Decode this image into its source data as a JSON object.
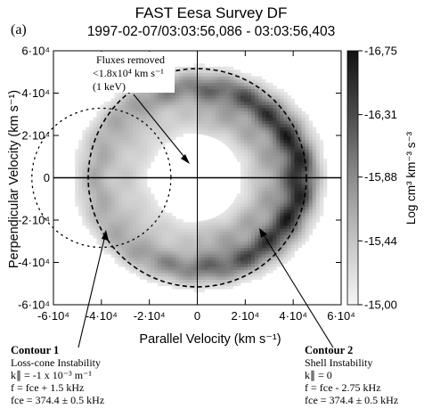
{
  "panel_label": "(a)",
  "chart_data": {
    "type": "heatmap",
    "title": "FAST  Eesa Survey DF",
    "subtitle": "1997-02-07/03:03:56,086 - 03:03:56,403",
    "xlabel": "Parallel Velocity (km s⁻¹)",
    "ylabel": "Perpendicular Velocity (km s⁻¹)",
    "xlim": [
      -60000,
      60000
    ],
    "ylim": [
      -60000,
      60000
    ],
    "x_ticks": [
      {
        "value": -60000,
        "label": "-6·10⁴"
      },
      {
        "value": -40000,
        "label": "-4·10⁴"
      },
      {
        "value": -20000,
        "label": "-2·10⁴"
      },
      {
        "value": 0,
        "label": "0"
      },
      {
        "value": 20000,
        "label": "2·10⁴"
      },
      {
        "value": 40000,
        "label": "4·10⁴"
      },
      {
        "value": 60000,
        "label": "6·10⁴"
      }
    ],
    "y_ticks": [
      {
        "value": 60000,
        "label": "6·10⁴"
      },
      {
        "value": 40000,
        "label": "4·10⁴"
      },
      {
        "value": 20000,
        "label": "2·10⁴"
      },
      {
        "value": 0,
        "label": "0"
      },
      {
        "value": -20000,
        "label": "-2·10⁴"
      },
      {
        "value": -40000,
        "label": "-4·10⁴"
      },
      {
        "value": -60000,
        "label": "-6·10⁴"
      }
    ],
    "colorbar": {
      "label": "Log cm³ km⁻³ s⁻³",
      "range": [
        -16.75,
        -15.0
      ],
      "ticks": [
        "-15,00",
        "-15,44",
        "-15,88",
        "-16,31",
        "-16,75"
      ],
      "tick_values": [
        -15.0,
        -15.44,
        -15.88,
        -16.31,
        -16.75
      ]
    },
    "removed_flux_radius": 18000,
    "contours": [
      {
        "name": "Contour 1",
        "center": [
          -40000,
          0
        ],
        "radius": 29000
      },
      {
        "name": "Contour 2",
        "center": [
          0,
          0
        ],
        "radius": 45500
      }
    ],
    "distribution": {
      "shell_radius": 43000,
      "shell_width": 7000,
      "peak_angle_deg": 0,
      "peak_log": -15.0,
      "edge_log": -16.75
    }
  },
  "annotations": {
    "flux_removed": [
      "Fluxes removed",
      "<1.8x10⁴ km s⁻¹",
      "(1 keV)"
    ],
    "contour1": [
      "Contour 1",
      "Loss-cone Instability",
      "k∥ = -1 x 10⁻³ m⁻¹",
      "f = fсе + 1.5 kHz",
      "fсе = 374.4 ± 0.5 kHz"
    ],
    "contour2": [
      "Contour 2",
      "Shell Instability",
      "k∥ = 0",
      "f = fсе - 2.75 kHz",
      "fсе = 374.4 ± 0.5 kHz"
    ]
  }
}
